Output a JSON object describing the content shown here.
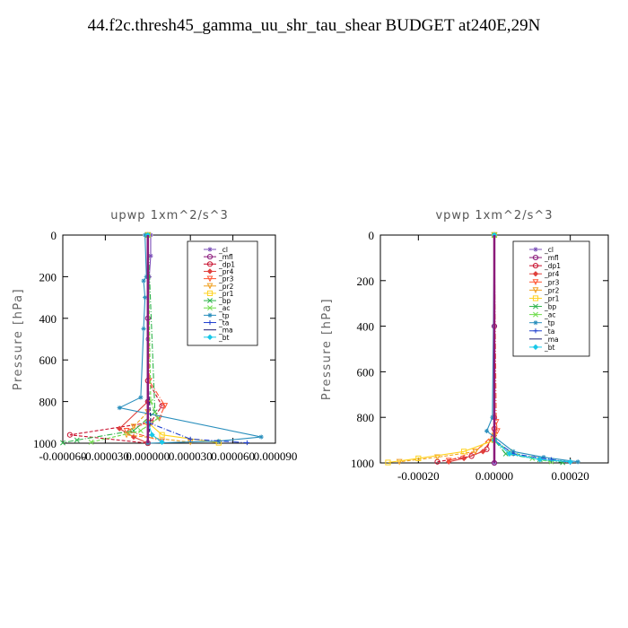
{
  "page": {
    "title": "44.f2c.thresh45_gamma_uu_shr_tau_shear  BUDGET at240E,29N"
  },
  "colors": {
    "_cl": "#7b4fb8",
    "_mfl": "#8b1a7a",
    "_dp1": "#c8102e",
    "_pr4": "#e0403c",
    "_pr3": "#ff5533",
    "_pr2": "#f0a020",
    "_pr1": "#ffd21f",
    "_bp": "#2db34a",
    "_ac": "#6fdc4c",
    "_tp": "#2a8fbd",
    "_ta": "#1f3fd0",
    "_ma": "#1a1a6e",
    "_bt": "#18c8e8"
  },
  "chart_data": [
    {
      "type": "line",
      "title": "upwp  1xm^2/s^3",
      "ylabel": "Pressure [hPa]",
      "xlabel": "",
      "xlim": [
        -6e-05,
        9e-05
      ],
      "ylim": [
        1000,
        0
      ],
      "xticks": [
        -6e-05,
        -3e-05,
        0.0,
        3e-05,
        6e-05,
        9e-05
      ],
      "xtick_labels": [
        "-0.000060",
        "-0.000030",
        "0.000000",
        "0.000030",
        "0.000060",
        "0.000090"
      ],
      "yticks": [
        0,
        200,
        400,
        600,
        800,
        1000
      ],
      "ytick_labels": [
        "0",
        "200",
        "400",
        "600",
        "800",
        "1000"
      ],
      "legend": [
        "_cl",
        "_mfl",
        "_dp1",
        "_pr4",
        "_pr3",
        "_pr2",
        "_pr1",
        "_bp",
        "_ac",
        "_tp",
        "_ta",
        "_ma",
        "_bt"
      ],
      "legend_position": "top-right",
      "series": [
        {
          "name": "_cl",
          "x": [
            2e-06,
            2e-06,
            1e-06,
            0,
            0
          ],
          "y": [
            0,
            100,
            200,
            500,
            1000
          ]
        },
        {
          "name": "_mfl",
          "x": [
            0,
            0,
            0,
            0
          ],
          "y": [
            0,
            400,
            800,
            1000
          ]
        },
        {
          "name": "_dp1",
          "x": [
            0,
            0,
            1e-05,
            2e-06,
            -5.5e-05,
            0
          ],
          "y": [
            0,
            700,
            820,
            900,
            960,
            1000
          ]
        },
        {
          "name": "_pr4",
          "x": [
            0,
            0,
            -2e-05,
            -1e-05,
            0
          ],
          "y": [
            0,
            800,
            930,
            970,
            1000
          ]
        },
        {
          "name": "_pr3",
          "x": [
            0,
            1e-06,
            1.2e-05,
            8e-06,
            -1.5e-05,
            1e-05
          ],
          "y": [
            0,
            700,
            820,
            880,
            940,
            990
          ]
        },
        {
          "name": "_pr2",
          "x": [
            0,
            0,
            -1e-05,
            -1.5e-05,
            3e-05
          ],
          "y": [
            0,
            850,
            920,
            960,
            995
          ]
        },
        {
          "name": "_pr1",
          "x": [
            0,
            0,
            1e-05,
            5e-05
          ],
          "y": [
            0,
            900,
            960,
            998
          ]
        },
        {
          "name": "_bp",
          "x": [
            0,
            5e-06,
            -1e-05,
            -5e-05,
            -6e-05
          ],
          "y": [
            0,
            850,
            940,
            985,
            998
          ]
        },
        {
          "name": "_ac",
          "x": [
            0,
            2e-06,
            7e-06,
            -5e-06,
            -4e-05
          ],
          "y": [
            0,
            800,
            880,
            940,
            995
          ]
        },
        {
          "name": "_tp",
          "x": [
            -2e-06,
            -1e-06,
            -3e-06,
            -2e-06,
            -3e-06,
            -5e-06,
            -2e-05,
            8e-05,
            5e-05,
            0
          ],
          "y": [
            0,
            200,
            220,
            300,
            450,
            780,
            830,
            970,
            990,
            1000
          ]
        },
        {
          "name": "_ta",
          "x": [
            0,
            0,
            3e-05,
            7e-05
          ],
          "y": [
            0,
            900,
            980,
            998
          ]
        },
        {
          "name": "_ma",
          "x": [
            0,
            0,
            2e-06,
            0
          ],
          "y": [
            0,
            700,
            880,
            1000
          ]
        },
        {
          "name": "_bt",
          "x": [
            0,
            0,
            3e-06,
            1e-05
          ],
          "y": [
            0,
            900,
            960,
            995
          ]
        }
      ]
    },
    {
      "type": "line",
      "title": "vpwp  1xm^2/s^3",
      "ylabel": "Pressure [hPa]",
      "xlabel": "",
      "xlim": [
        -0.0003,
        0.0003
      ],
      "ylim": [
        1000,
        0
      ],
      "xticks": [
        -0.0002,
        0.0,
        0.0002
      ],
      "xtick_labels": [
        "-0.00020",
        "0.00000",
        "0.00020"
      ],
      "yticks": [
        0,
        200,
        400,
        600,
        800,
        1000
      ],
      "ytick_labels": [
        "0",
        "200",
        "400",
        "600",
        "800",
        "1000"
      ],
      "legend": [
        "_cl",
        "_mfl",
        "_dp1",
        "_pr4",
        "_pr3",
        "_pr2",
        "_pr1",
        "_bp",
        "_ac",
        "_tp",
        "_ta",
        "_ma",
        "_bt"
      ],
      "legend_position": "top-right",
      "series": [
        {
          "name": "_cl",
          "x": [
            0,
            0,
            0,
            0
          ],
          "y": [
            0,
            400,
            800,
            1000
          ]
        },
        {
          "name": "_mfl",
          "x": [
            0,
            0,
            0,
            0
          ],
          "y": [
            0,
            400,
            800,
            1000
          ]
        },
        {
          "name": "_dp1",
          "x": [
            0,
            0,
            -2e-05,
            -6e-05,
            -0.00015
          ],
          "y": [
            0,
            850,
            940,
            970,
            995
          ]
        },
        {
          "name": "_pr4",
          "x": [
            0,
            0,
            -3e-05,
            -8e-05,
            -0.00012
          ],
          "y": [
            0,
            880,
            950,
            980,
            995
          ]
        },
        {
          "name": "_pr3",
          "x": [
            0,
            5e-06,
            8e-06,
            -5e-05,
            -0.00012
          ],
          "y": [
            0,
            820,
            860,
            950,
            990
          ]
        },
        {
          "name": "_pr2",
          "x": [
            0,
            0,
            -5e-05,
            -0.00015,
            -0.00025
          ],
          "y": [
            0,
            880,
            950,
            975,
            995
          ]
        },
        {
          "name": "_pr1",
          "x": [
            0,
            0,
            -8e-05,
            -0.0002,
            -0.00028
          ],
          "y": [
            0,
            900,
            950,
            980,
            998
          ]
        },
        {
          "name": "_bp",
          "x": [
            0,
            0,
            3e-05,
            0.00012,
            0.00018
          ],
          "y": [
            0,
            900,
            960,
            985,
            998
          ]
        },
        {
          "name": "_ac",
          "x": [
            0,
            0,
            4e-05,
            0.0001,
            0.00015
          ],
          "y": [
            0,
            900,
            950,
            980,
            995
          ]
        },
        {
          "name": "_tp",
          "x": [
            0,
            -5e-06,
            -2e-05,
            5e-05,
            0.00013,
            0.00022
          ],
          "y": [
            0,
            800,
            860,
            950,
            975,
            995
          ]
        },
        {
          "name": "_ta",
          "x": [
            0,
            0,
            5e-05,
            0.00015,
            0.0002
          ],
          "y": [
            0,
            900,
            960,
            985,
            998
          ]
        },
        {
          "name": "_ma",
          "x": [
            0,
            0,
            0
          ],
          "y": [
            0,
            800,
            1000
          ]
        },
        {
          "name": "_bt",
          "x": [
            0,
            0,
            4e-05,
            0.00012,
            0.0002
          ],
          "y": [
            0,
            900,
            960,
            985,
            995
          ]
        }
      ]
    }
  ]
}
